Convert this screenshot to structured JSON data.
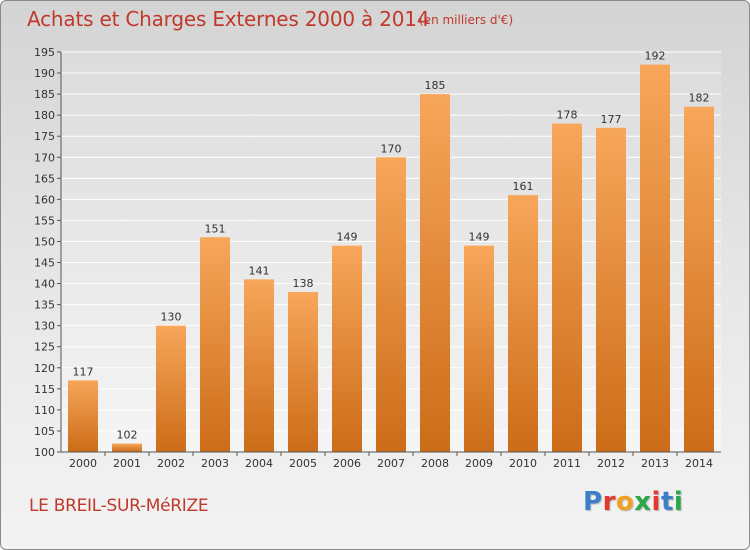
{
  "header": {
    "title": "Achats et Charges Externes 2000 à 2014",
    "subtitle": "(en milliers d'€)"
  },
  "footer": {
    "commune": "LE BREIL-SUR-MéRIZE",
    "logo_text": "Proxiti",
    "logo_colors": [
      "#3a7fc8",
      "#e23a2e",
      "#f0a020",
      "#2aa84a",
      "#e23a2e",
      "#3a7fc8",
      "#2aa84a"
    ]
  },
  "colors": {
    "bar_top": "#f7a65a",
    "bar_bottom": "#cc6c18",
    "title": "#c0392b"
  },
  "chart_data": {
    "type": "bar",
    "categories": [
      "2000",
      "2001",
      "2002",
      "2003",
      "2004",
      "2005",
      "2006",
      "2007",
      "2008",
      "2009",
      "2010",
      "2011",
      "2012",
      "2013",
      "2014"
    ],
    "values": [
      117,
      102,
      130,
      151,
      141,
      138,
      149,
      170,
      185,
      149,
      161,
      178,
      177,
      192,
      182
    ],
    "ylim": [
      100,
      195
    ],
    "yticks": [
      100,
      105,
      110,
      115,
      120,
      125,
      130,
      135,
      140,
      145,
      150,
      155,
      160,
      165,
      170,
      175,
      180,
      185,
      190,
      195
    ],
    "grid": true
  }
}
